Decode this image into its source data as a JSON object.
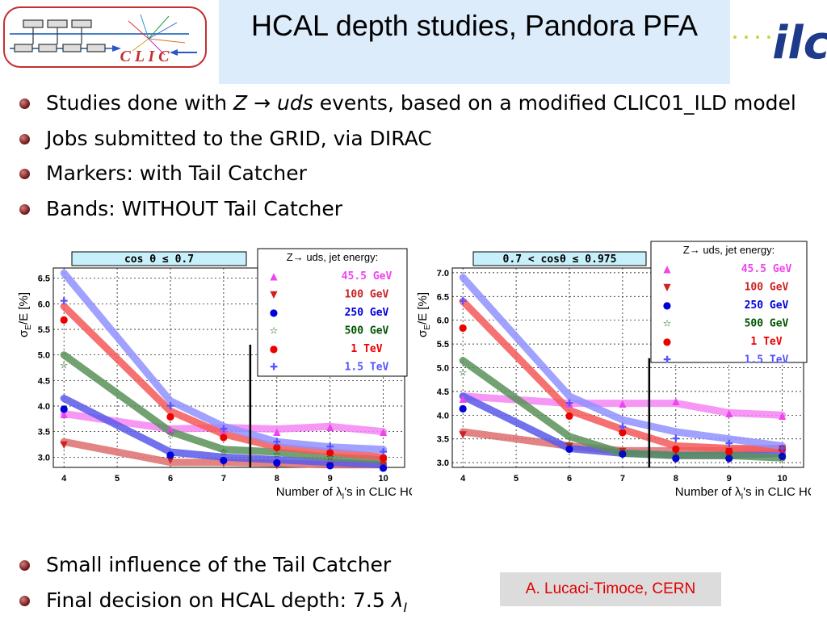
{
  "title": "HCAL depth studies, Pandora PFA",
  "logos": {
    "clic_text": "C L I C",
    "ilc_text": "ilc"
  },
  "bullets_top": [
    "Studies done with ",
    "Jobs submitted to the GRID, via DIRAC",
    "Markers: with Tail Catcher",
    "Bands: WITHOUT Tail Catcher"
  ],
  "bullet1_math": {
    "z": "Z",
    "arrow": "→",
    "uds": "uds",
    "rest": " events, based on a modified CLIC01_ILD model"
  },
  "bullets_bottom": [
    "Small influence of the Tail Catcher",
    "Final decision on HCAL depth: 7.5 "
  ],
  "bullet_lambda": "λ",
  "bullet_lambda_sub": "I",
  "credit": "A. Lucaci-Timoce, CERN",
  "colors": {
    "45.5 GeV": "#ee44ee",
    "100 GeV": "#cc2222",
    "250 GeV": "#0000dd",
    "500 GeV": "#005500",
    "1 TeV": "#ee0000",
    "1.5 TeV": "#5555ff"
  },
  "chart_data": [
    {
      "type": "line",
      "cut_label": "cos θ ≤ 0.7",
      "xlabel": "Number of λ",
      "xlabel_sub": "I",
      "xlabel_rest": "'s in CLIC HCAL",
      "ylabel": "σ",
      "ylabel_sub": "E",
      "ylabel_rest": "/E [%]",
      "x": [
        4,
        6,
        7,
        8,
        9,
        10
      ],
      "xlim": [
        3.8,
        10.4
      ],
      "ylim": [
        2.8,
        6.7
      ],
      "xticks": [
        "4",
        "5",
        "6",
        "7",
        "8",
        "9",
        "10"
      ],
      "yticks": [
        "3.0",
        "3.5",
        "4.0",
        "4.5",
        "5.0",
        "5.5",
        "6.0",
        "6.5"
      ],
      "decision_x": 7.5,
      "legend_title": "Z→ uds, jet energy:",
      "series": [
        {
          "name": "45.5 GeV",
          "marker": "▲",
          "markers": [
            3.85,
            3.55,
            3.55,
            3.5,
            3.6,
            3.5
          ],
          "band": [
            3.85,
            3.55,
            3.58,
            3.55,
            3.6,
            3.5
          ]
        },
        {
          "name": "100 GeV",
          "marker": "▼",
          "markers": [
            3.25,
            2.95,
            2.9,
            2.85,
            2.85,
            2.85
          ],
          "band": [
            3.3,
            2.9,
            2.9,
            2.88,
            2.85,
            2.85
          ]
        },
        {
          "name": "250 GeV",
          "marker": "●",
          "markers": [
            3.95,
            3.05,
            2.95,
            2.9,
            2.85,
            2.8
          ],
          "band": [
            4.15,
            3.1,
            3.0,
            2.95,
            2.9,
            2.85
          ]
        },
        {
          "name": "500 GeV",
          "marker": "☆",
          "markers": [
            4.8,
            3.45,
            3.1,
            3.05,
            3.0,
            2.95
          ],
          "band": [
            5.0,
            3.5,
            3.15,
            3.1,
            3.0,
            2.95
          ]
        },
        {
          "name": "1 TeV",
          "marker": "●",
          "markers": [
            5.7,
            3.8,
            3.4,
            3.2,
            3.1,
            3.0
          ],
          "band": [
            5.95,
            3.9,
            3.45,
            3.2,
            3.1,
            3.0
          ]
        },
        {
          "name": "1.5 TeV",
          "marker": "✚",
          "markers": [
            6.05,
            4.0,
            3.55,
            3.3,
            3.2,
            3.1
          ],
          "band": [
            6.6,
            4.1,
            3.6,
            3.3,
            3.2,
            3.15
          ]
        }
      ]
    },
    {
      "type": "line",
      "cut_label": "0.7 < cosθ ≤ 0.975",
      "xlabel": "Number of λ",
      "xlabel_sub": "I",
      "xlabel_rest": "'s in CLIC HCAL",
      "ylabel": "σ",
      "ylabel_sub": "E",
      "ylabel_rest": "/E [%]",
      "x": [
        4,
        6,
        7,
        8,
        9,
        10
      ],
      "xlim": [
        3.8,
        10.4
      ],
      "ylim": [
        2.9,
        7.1
      ],
      "xticks": [
        "4",
        "5",
        "6",
        "7",
        "8",
        "9",
        "10"
      ],
      "yticks": [
        "3.0",
        "3.5",
        "4.0",
        "4.5",
        "5.0",
        "5.5",
        "6.0",
        "6.5",
        "7.0"
      ],
      "decision_x": 7.5,
      "legend_title": "Z→ uds, jet energy:",
      "series": [
        {
          "name": "45.5 GeV",
          "marker": "▲",
          "markers": [
            4.35,
            4.25,
            4.25,
            4.3,
            4.05,
            4.0
          ],
          "band": [
            4.4,
            4.25,
            4.25,
            4.25,
            4.05,
            4.0
          ]
        },
        {
          "name": "100 GeV",
          "marker": "▼",
          "markers": [
            3.6,
            3.35,
            3.25,
            3.25,
            3.25,
            3.3
          ],
          "band": [
            3.65,
            3.35,
            3.25,
            3.25,
            3.25,
            3.3
          ]
        },
        {
          "name": "250 GeV",
          "marker": "●",
          "markers": [
            4.15,
            3.3,
            3.2,
            3.1,
            3.1,
            3.15
          ],
          "band": [
            4.4,
            3.3,
            3.2,
            3.15,
            3.15,
            3.2
          ]
        },
        {
          "name": "500 GeV",
          "marker": "☆",
          "markers": [
            4.9,
            3.4,
            3.2,
            3.15,
            3.15,
            3.1
          ],
          "band": [
            5.15,
            3.55,
            3.2,
            3.15,
            3.15,
            3.1
          ]
        },
        {
          "name": "1 TeV",
          "marker": "●",
          "markers": [
            5.85,
            4.0,
            3.65,
            3.3,
            3.25,
            3.3
          ],
          "band": [
            6.4,
            4.1,
            3.7,
            3.35,
            3.3,
            3.3
          ]
        },
        {
          "name": "1.5 TeV",
          "marker": "✚",
          "markers": [
            6.4,
            4.25,
            3.75,
            3.5,
            3.4,
            3.3
          ],
          "band": [
            6.9,
            4.4,
            3.9,
            3.65,
            3.5,
            3.35
          ]
        }
      ]
    }
  ]
}
